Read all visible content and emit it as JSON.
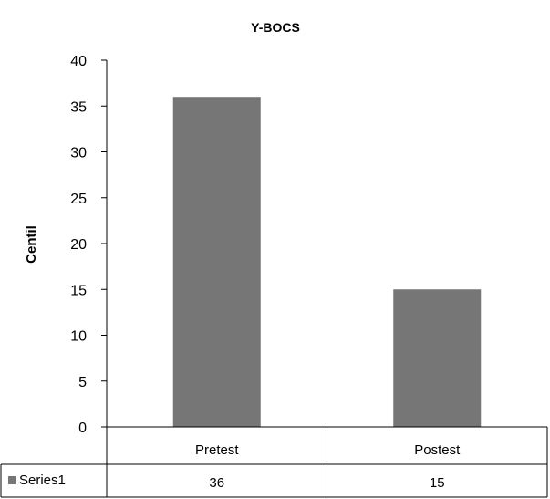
{
  "chart_data": {
    "type": "bar",
    "title": "Y-BOCS",
    "xlabel": "",
    "ylabel": "Centil",
    "categories": [
      "Pretest",
      "Postest"
    ],
    "series": [
      {
        "name": "Series1",
        "values": [
          36,
          15
        ]
      }
    ],
    "ylim": [
      0,
      40
    ],
    "yticks": [
      0,
      5,
      10,
      15,
      20,
      25,
      30,
      35,
      40
    ],
    "grid": false,
    "legend": "data-table",
    "data_table": true,
    "colors": {
      "bar": "#767676",
      "axis": "#000000"
    }
  }
}
